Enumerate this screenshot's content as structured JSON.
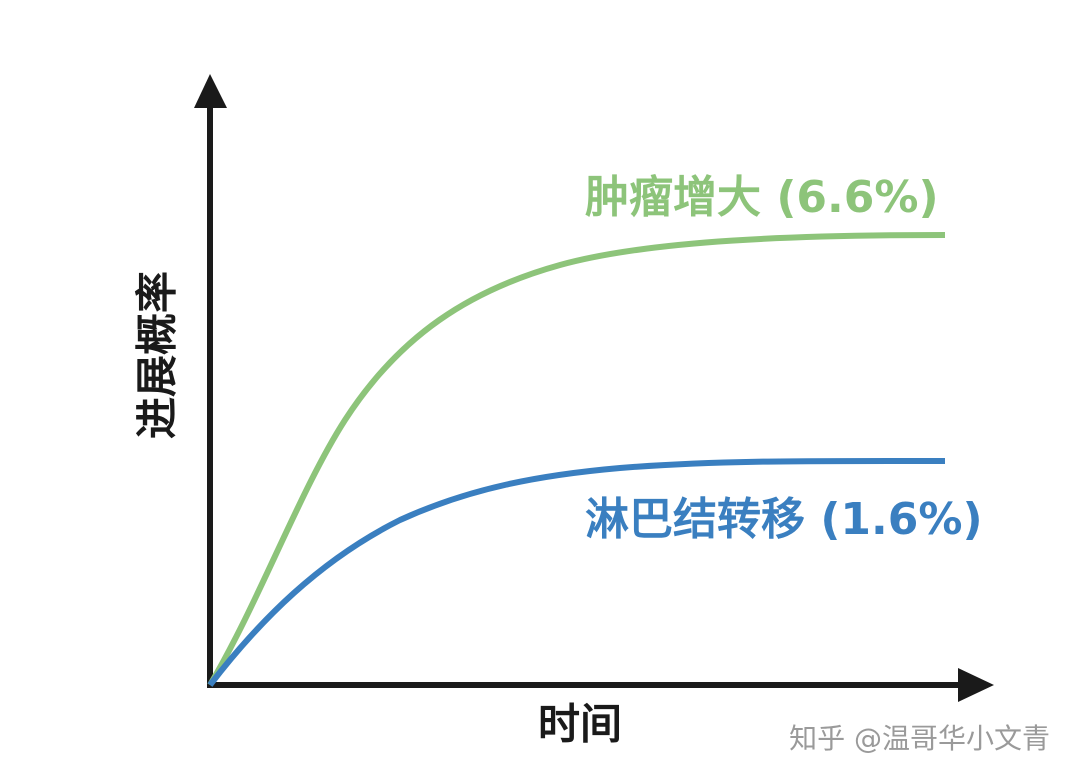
{
  "axes": {
    "y_label": "进展概率",
    "x_label": "时间"
  },
  "curves": [
    {
      "label": "肿瘤增大 (6.6%)"
    },
    {
      "label": "淋巴结转移 (1.6%)"
    }
  ],
  "watermark": "知乎 @温哥华小文青"
}
